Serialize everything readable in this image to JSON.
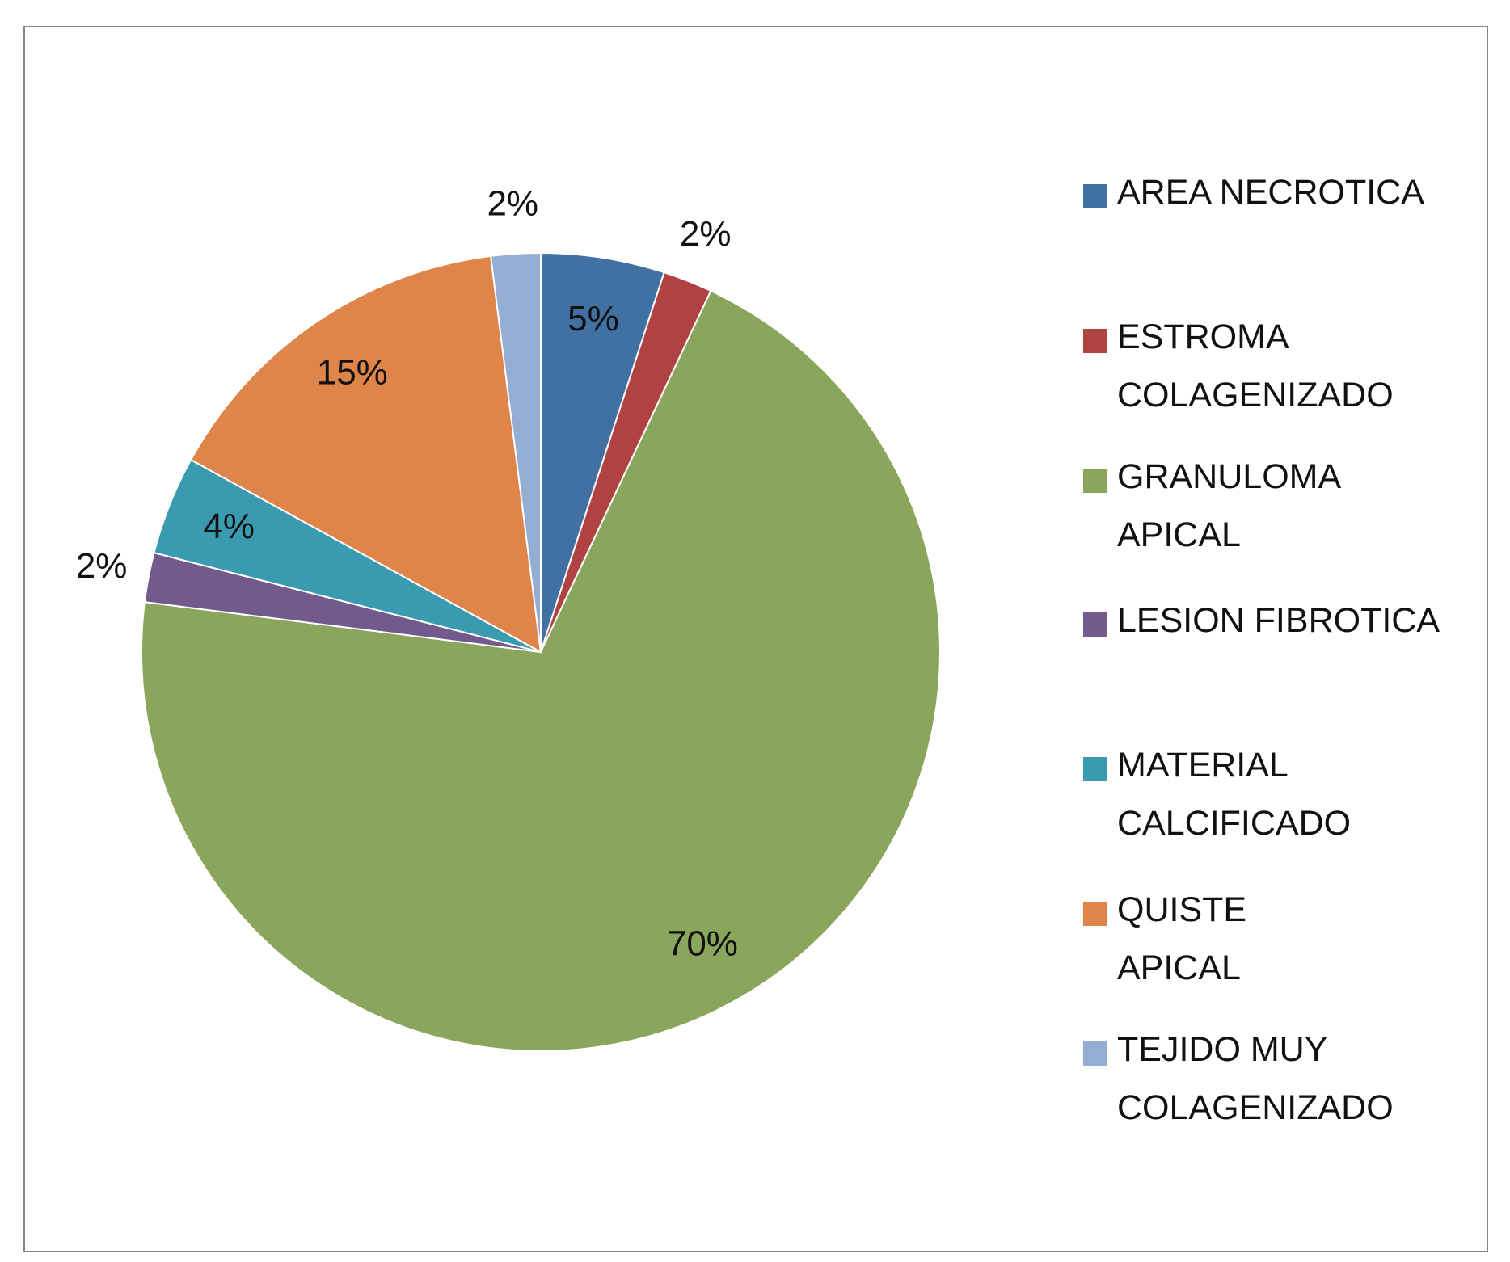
{
  "chart_data": {
    "type": "pie",
    "categories": [
      "AREA NECROTICA",
      "ESTROMA\nCOLAGENIZADO",
      "GRANULOMA\nAPICAL",
      "LESION FIBROTICA",
      "MATERIAL\nCALCIFICADO",
      "QUISTE\nAPICAL",
      "TEJIDO MUY\nCOLAGENIZADO"
    ],
    "values": [
      5,
      2,
      70,
      2,
      4,
      15,
      2
    ],
    "value_labels": [
      "5%",
      "2%",
      "70%",
      "2%",
      "4%",
      "15%",
      "2%"
    ],
    "colors": [
      "#4170a2",
      "#b04342",
      "#8aa65c",
      "#725a8d",
      "#3a9bb0",
      "#e0854a",
      "#93aed2"
    ],
    "legend": "right"
  }
}
